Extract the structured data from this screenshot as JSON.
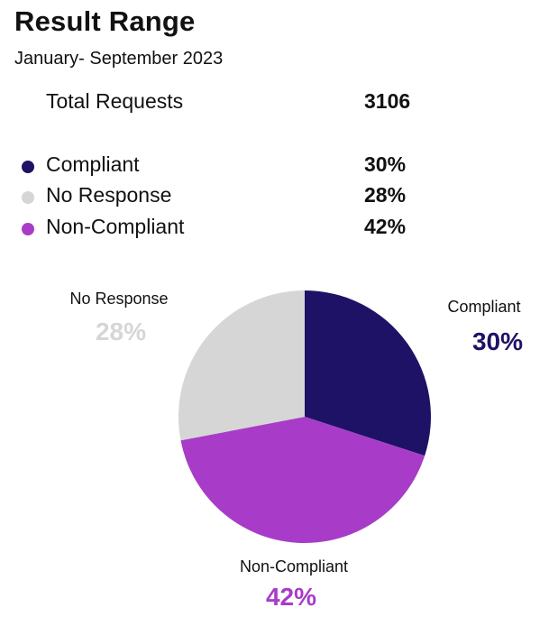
{
  "header": {
    "title": "Result Range",
    "subtitle": "January- September 2023"
  },
  "summary": {
    "total_label": "Total Requests",
    "total_value": "3106"
  },
  "legend": [
    {
      "label": "Compliant",
      "value_text": "30%",
      "color": "#1e1266"
    },
    {
      "label": "No Response",
      "value_text": "28%",
      "color": "#d6d6d6"
    },
    {
      "label": "Non-Compliant",
      "value_text": "42%",
      "color": "#a83cc8"
    }
  ],
  "chart_data": {
    "type": "pie",
    "title": "",
    "slices": [
      {
        "label": "Compliant",
        "value": 30,
        "value_text": "30%",
        "color": "#1e1266"
      },
      {
        "label": "Non-Compliant",
        "value": 42,
        "value_text": "42%",
        "color": "#a83cc8"
      },
      {
        "label": "No Response",
        "value": 28,
        "value_text": "28%",
        "color": "#d6d6d6"
      }
    ],
    "start": "top",
    "direction": "clockwise",
    "legend_position": "top-left"
  }
}
